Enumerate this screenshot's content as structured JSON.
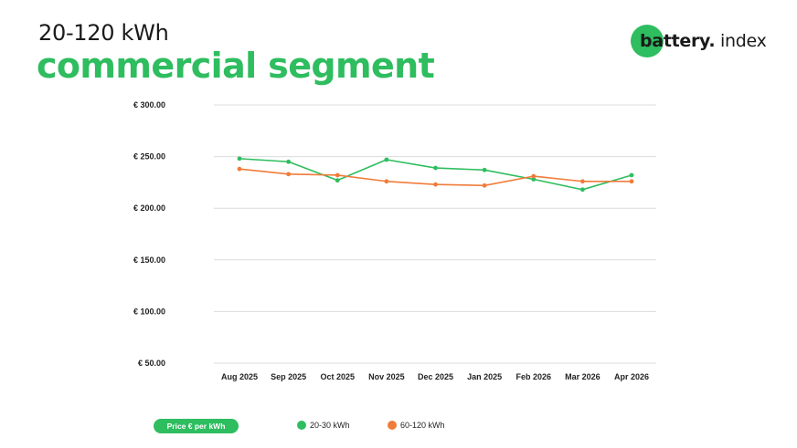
{
  "header": {
    "subtitle": "20-120 kWh",
    "title": "commercial segment"
  },
  "logo": {
    "word1": "battery",
    "dot": ".",
    "word2": " index",
    "color": "#2ebd5f"
  },
  "legend": {
    "pill_label": "Price € per kWh",
    "items": [
      {
        "label": "20-30 kWh",
        "color": "#2ebd5f"
      },
      {
        "label": "60-120 kWh",
        "color": "#f07c3a"
      }
    ]
  },
  "chart_data": {
    "type": "line",
    "categories": [
      "Aug 2025",
      "Sep 2025",
      "Oct 2025",
      "Nov 2025",
      "Dec 2025",
      "Jan 2025",
      "Feb 2026",
      "Mar 2026",
      "Apr 2026"
    ],
    "series": [
      {
        "name": "20-30 kWh",
        "color": "#2ebd5f",
        "values": [
          248,
          245,
          227,
          247,
          239,
          237,
          228,
          218,
          232
        ]
      },
      {
        "name": "60-120 kWh",
        "color": "#f07c3a",
        "values": [
          238,
          233,
          232,
          226,
          223,
          222,
          231,
          226,
          226
        ]
      }
    ],
    "yticks": [
      "€ 300.00",
      "€ 250.00",
      "€ 200.00",
      "€ 150.00",
      "€ 100.00",
      "€ 50.00"
    ],
    "ylim": [
      50,
      300
    ],
    "grid": true,
    "legend_position": "bottom"
  }
}
